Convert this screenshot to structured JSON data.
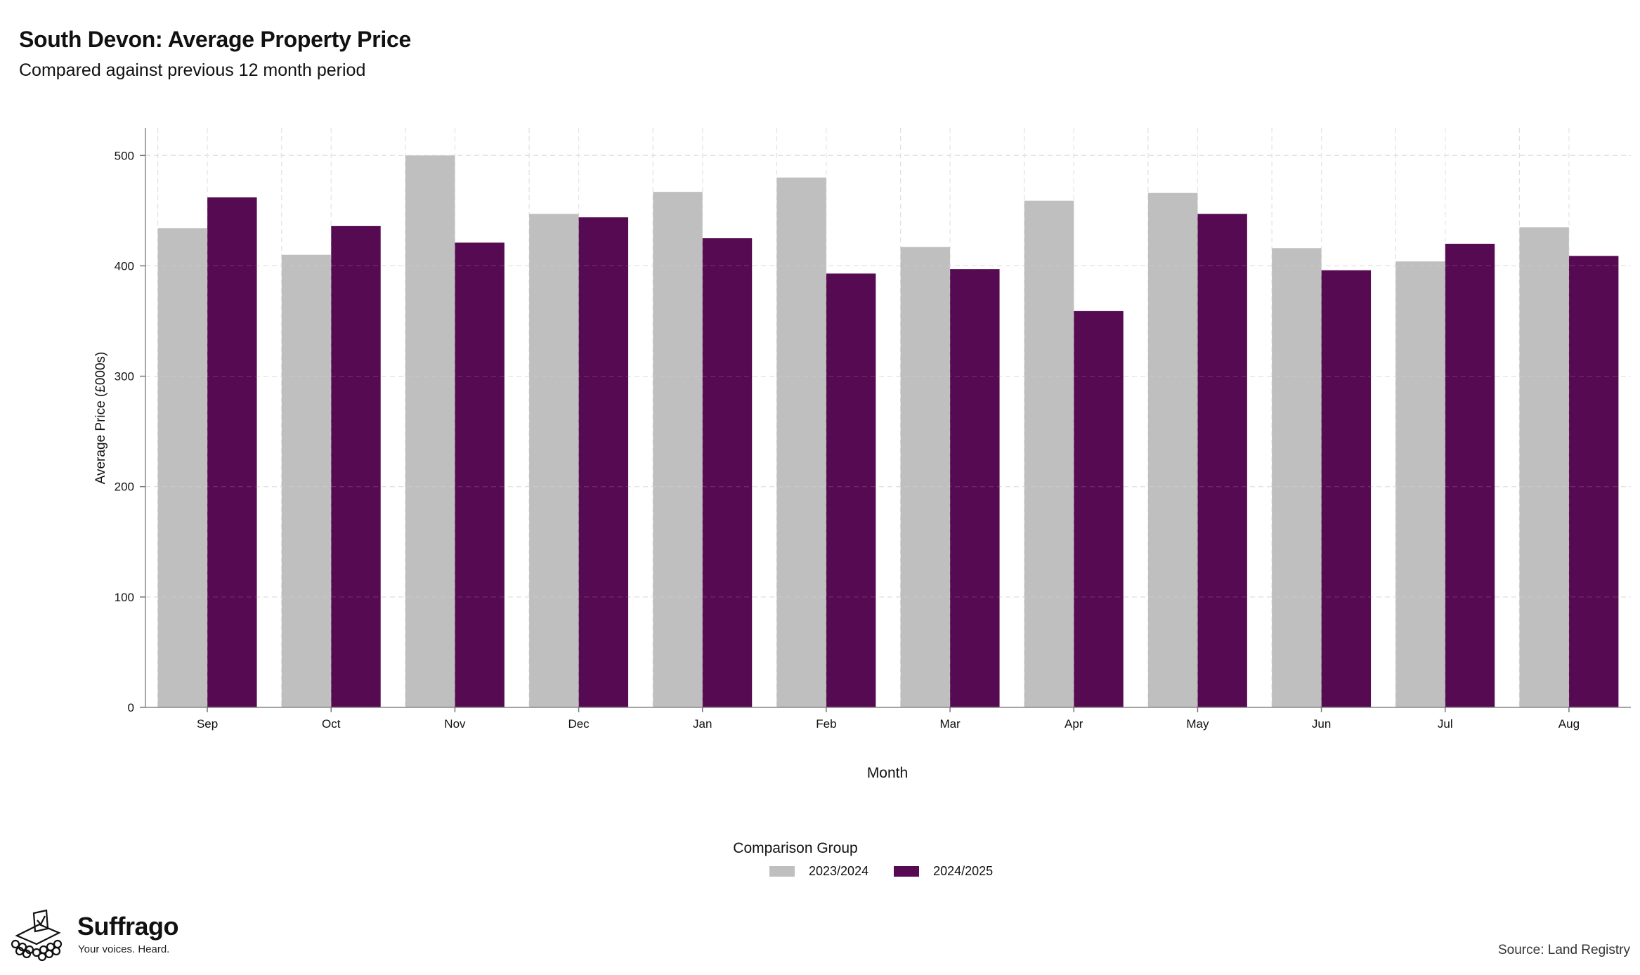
{
  "header": {
    "title": "South Devon: Average Property Price",
    "subtitle": "Compared against previous 12 month period"
  },
  "chart_data": {
    "type": "bar",
    "categories": [
      "Sep",
      "Oct",
      "Nov",
      "Dec",
      "Jan",
      "Feb",
      "Mar",
      "Apr",
      "May",
      "Jun",
      "Jul",
      "Aug"
    ],
    "series": [
      {
        "name": "2023/2024",
        "color": "#bfbfbf",
        "values": [
          434,
          410,
          500,
          447,
          467,
          480,
          417,
          459,
          466,
          416,
          404,
          435
        ]
      },
      {
        "name": "2024/2025",
        "color": "#560a52",
        "values": [
          462,
          436,
          421,
          444,
          425,
          393,
          397,
          359,
          447,
          396,
          420,
          409
        ]
      }
    ],
    "xlabel": "Month",
    "ylabel": "Average Price (£000s)",
    "ylim": [
      0,
      525
    ],
    "yticks": [
      0,
      100,
      200,
      300,
      400,
      500
    ],
    "grid": true,
    "legend_title": "Comparison Group",
    "legend_position": "bottom"
  },
  "branding": {
    "name": "Suffrago",
    "tagline": "Your voices. Heard.",
    "logo_icon": "ballot-box-icon"
  },
  "footer": {
    "source": "Source: Land Registry"
  }
}
